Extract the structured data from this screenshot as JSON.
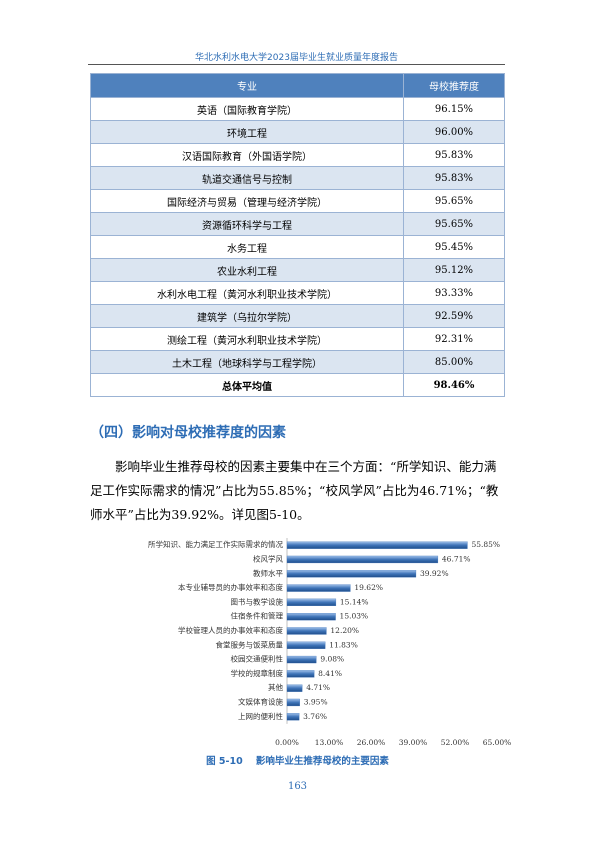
{
  "header": "华北水利水电大学2023届毕业生就业质量年度报告",
  "table": {
    "columns": [
      "专业",
      "母校推荐度"
    ],
    "rows": [
      [
        "英语（国际教育学院）",
        "96.15%"
      ],
      [
        "环境工程",
        "96.00%"
      ],
      [
        "汉语国际教育（外国语学院）",
        "95.83%"
      ],
      [
        "轨道交通信号与控制",
        "95.83%"
      ],
      [
        "国际经济与贸易（管理与经济学院）",
        "95.65%"
      ],
      [
        "资源循环科学与工程",
        "95.65%"
      ],
      [
        "水务工程",
        "95.45%"
      ],
      [
        "农业水利工程",
        "95.12%"
      ],
      [
        "水利水电工程（黄河水利职业技术学院）",
        "93.33%"
      ],
      [
        "建筑学（乌拉尔学院）",
        "92.59%"
      ],
      [
        "测绘工程（黄河水利职业技术学院）",
        "92.31%"
      ],
      [
        "土木工程（地球科学与工程学院）",
        "85.00%"
      ],
      [
        "总体平均值",
        "98.46%"
      ]
    ]
  },
  "section_heading": "（四）影响对母校推荐度的因素",
  "paragraph": "影响毕业生推荐母校的因素主要集中在三个方面：“所学知识、能力满足工作实际需求的情况”占比为55.85%；“校风学风”占比为46.71%；“教师水平”占比为39.92%。详见图5-10。",
  "chart_data": {
    "type": "bar",
    "categories": [
      "所学知识、能力满足工作实际需求的情况",
      "校风学风",
      "教师水平",
      "本专业辅导员的办事效率和态度",
      "图书与教学设施",
      "住宿条件和管理",
      "学校管理人员的办事效率和态度",
      "食堂服务与饭菜质量",
      "校园交通便利性",
      "学校的规章制度",
      "其他",
      "文娱体育设施",
      "上网的便利性"
    ],
    "values": [
      55.85,
      46.71,
      39.92,
      19.62,
      15.14,
      15.03,
      12.2,
      11.83,
      9.08,
      8.41,
      4.71,
      3.95,
      3.76
    ],
    "value_labels": [
      "55.85%",
      "46.71%",
      "39.92%",
      "19.62%",
      "15.14%",
      "15.03%",
      "12.20%",
      "11.83%",
      "9.08%",
      "8.41%",
      "4.71%",
      "3.95%",
      "3.76%"
    ],
    "color": "#3f74b8",
    "xlim": [
      0,
      65
    ],
    "xticks": [
      {
        "value": 0,
        "label": "0.00%"
      },
      {
        "value": 13,
        "label": "13.00%"
      },
      {
        "value": 26,
        "label": "26.00%"
      },
      {
        "value": 39,
        "label": "39.00%"
      },
      {
        "value": 52,
        "label": "52.00%"
      },
      {
        "value": 65,
        "label": "65.00%"
      }
    ]
  },
  "caption": "图 5-10    影响毕业生推荐母校的主要因素",
  "page_number": "163"
}
